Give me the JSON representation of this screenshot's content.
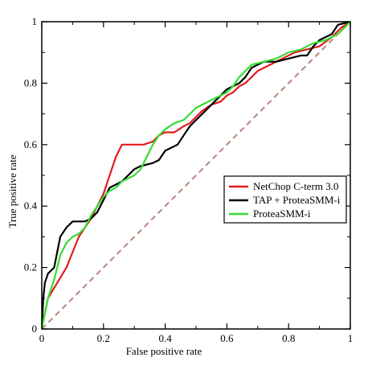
{
  "chart_data": {
    "type": "line",
    "title": "",
    "xlabel": "False positive rate",
    "ylabel": "True positive rate",
    "xlim": [
      0,
      1
    ],
    "ylim": [
      0,
      1
    ],
    "x_ticks": [
      0,
      0.2,
      0.4,
      0.6,
      0.8,
      1
    ],
    "y_ticks": [
      0,
      0.2,
      0.4,
      0.6,
      0.8,
      1
    ],
    "x_tick_labels": [
      "0",
      "0.2",
      "0.4",
      "0.6",
      "0.8",
      "1"
    ],
    "y_tick_labels": [
      "0",
      "0.2",
      "0.4",
      "0.6",
      "0.8",
      "1"
    ],
    "grid": false,
    "legend_position": "center-right",
    "series": [
      {
        "name": "NetChop C-term 3.0",
        "color": "#e41a1c",
        "points": [
          [
            0,
            0
          ],
          [
            0.01,
            0.05
          ],
          [
            0.02,
            0.1
          ],
          [
            0.05,
            0.15
          ],
          [
            0.08,
            0.2
          ],
          [
            0.1,
            0.25
          ],
          [
            0.12,
            0.3
          ],
          [
            0.14,
            0.33
          ],
          [
            0.16,
            0.36
          ],
          [
            0.18,
            0.4
          ],
          [
            0.2,
            0.44
          ],
          [
            0.22,
            0.5
          ],
          [
            0.24,
            0.56
          ],
          [
            0.26,
            0.6
          ],
          [
            0.28,
            0.6
          ],
          [
            0.3,
            0.6
          ],
          [
            0.33,
            0.6
          ],
          [
            0.36,
            0.61
          ],
          [
            0.38,
            0.63
          ],
          [
            0.4,
            0.64
          ],
          [
            0.43,
            0.64
          ],
          [
            0.46,
            0.66
          ],
          [
            0.48,
            0.67
          ],
          [
            0.5,
            0.69
          ],
          [
            0.52,
            0.71
          ],
          [
            0.55,
            0.73
          ],
          [
            0.58,
            0.74
          ],
          [
            0.6,
            0.76
          ],
          [
            0.62,
            0.77
          ],
          [
            0.64,
            0.79
          ],
          [
            0.66,
            0.8
          ],
          [
            0.68,
            0.82
          ],
          [
            0.7,
            0.84
          ],
          [
            0.74,
            0.86
          ],
          [
            0.78,
            0.88
          ],
          [
            0.82,
            0.9
          ],
          [
            0.86,
            0.91
          ],
          [
            0.9,
            0.92
          ],
          [
            0.94,
            0.95
          ],
          [
            0.97,
            0.98
          ],
          [
            1,
            1
          ]
        ]
      },
      {
        "name": "TAP + ProteaSMM-i",
        "color": "#000000",
        "points": [
          [
            0,
            0
          ],
          [
            0.005,
            0.1
          ],
          [
            0.01,
            0.15
          ],
          [
            0.02,
            0.18
          ],
          [
            0.04,
            0.2
          ],
          [
            0.05,
            0.25
          ],
          [
            0.06,
            0.3
          ],
          [
            0.08,
            0.33
          ],
          [
            0.1,
            0.35
          ],
          [
            0.14,
            0.35
          ],
          [
            0.16,
            0.36
          ],
          [
            0.18,
            0.38
          ],
          [
            0.2,
            0.42
          ],
          [
            0.22,
            0.46
          ],
          [
            0.24,
            0.47
          ],
          [
            0.26,
            0.48
          ],
          [
            0.28,
            0.5
          ],
          [
            0.3,
            0.52
          ],
          [
            0.32,
            0.53
          ],
          [
            0.36,
            0.54
          ],
          [
            0.38,
            0.55
          ],
          [
            0.4,
            0.58
          ],
          [
            0.44,
            0.6
          ],
          [
            0.46,
            0.63
          ],
          [
            0.48,
            0.66
          ],
          [
            0.5,
            0.68
          ],
          [
            0.52,
            0.7
          ],
          [
            0.54,
            0.72
          ],
          [
            0.56,
            0.74
          ],
          [
            0.58,
            0.76
          ],
          [
            0.6,
            0.78
          ],
          [
            0.64,
            0.8
          ],
          [
            0.66,
            0.82
          ],
          [
            0.68,
            0.85
          ],
          [
            0.72,
            0.87
          ],
          [
            0.76,
            0.87
          ],
          [
            0.8,
            0.88
          ],
          [
            0.84,
            0.89
          ],
          [
            0.86,
            0.89
          ],
          [
            0.88,
            0.92
          ],
          [
            0.9,
            0.94
          ],
          [
            0.94,
            0.96
          ],
          [
            0.96,
            0.99
          ],
          [
            1,
            1
          ]
        ]
      },
      {
        "name": "ProteaSMM-i",
        "color": "#33dd33",
        "points": [
          [
            0,
            0
          ],
          [
            0.01,
            0.05
          ],
          [
            0.02,
            0.1
          ],
          [
            0.04,
            0.16
          ],
          [
            0.06,
            0.24
          ],
          [
            0.08,
            0.28
          ],
          [
            0.1,
            0.3
          ],
          [
            0.12,
            0.31
          ],
          [
            0.14,
            0.33
          ],
          [
            0.16,
            0.37
          ],
          [
            0.18,
            0.4
          ],
          [
            0.2,
            0.43
          ],
          [
            0.22,
            0.45
          ],
          [
            0.24,
            0.46
          ],
          [
            0.26,
            0.48
          ],
          [
            0.28,
            0.49
          ],
          [
            0.3,
            0.5
          ],
          [
            0.32,
            0.52
          ],
          [
            0.34,
            0.56
          ],
          [
            0.36,
            0.6
          ],
          [
            0.38,
            0.63
          ],
          [
            0.4,
            0.65
          ],
          [
            0.43,
            0.67
          ],
          [
            0.46,
            0.68
          ],
          [
            0.48,
            0.7
          ],
          [
            0.5,
            0.72
          ],
          [
            0.52,
            0.73
          ],
          [
            0.54,
            0.74
          ],
          [
            0.56,
            0.75
          ],
          [
            0.58,
            0.76
          ],
          [
            0.6,
            0.77
          ],
          [
            0.62,
            0.79
          ],
          [
            0.64,
            0.82
          ],
          [
            0.66,
            0.84
          ],
          [
            0.68,
            0.86
          ],
          [
            0.72,
            0.87
          ],
          [
            0.76,
            0.88
          ],
          [
            0.8,
            0.9
          ],
          [
            0.84,
            0.91
          ],
          [
            0.88,
            0.93
          ],
          [
            0.92,
            0.94
          ],
          [
            0.96,
            0.96
          ],
          [
            1,
            1
          ]
        ]
      }
    ],
    "diagonal": {
      "color": "#b8857a",
      "style": "dashed"
    }
  }
}
